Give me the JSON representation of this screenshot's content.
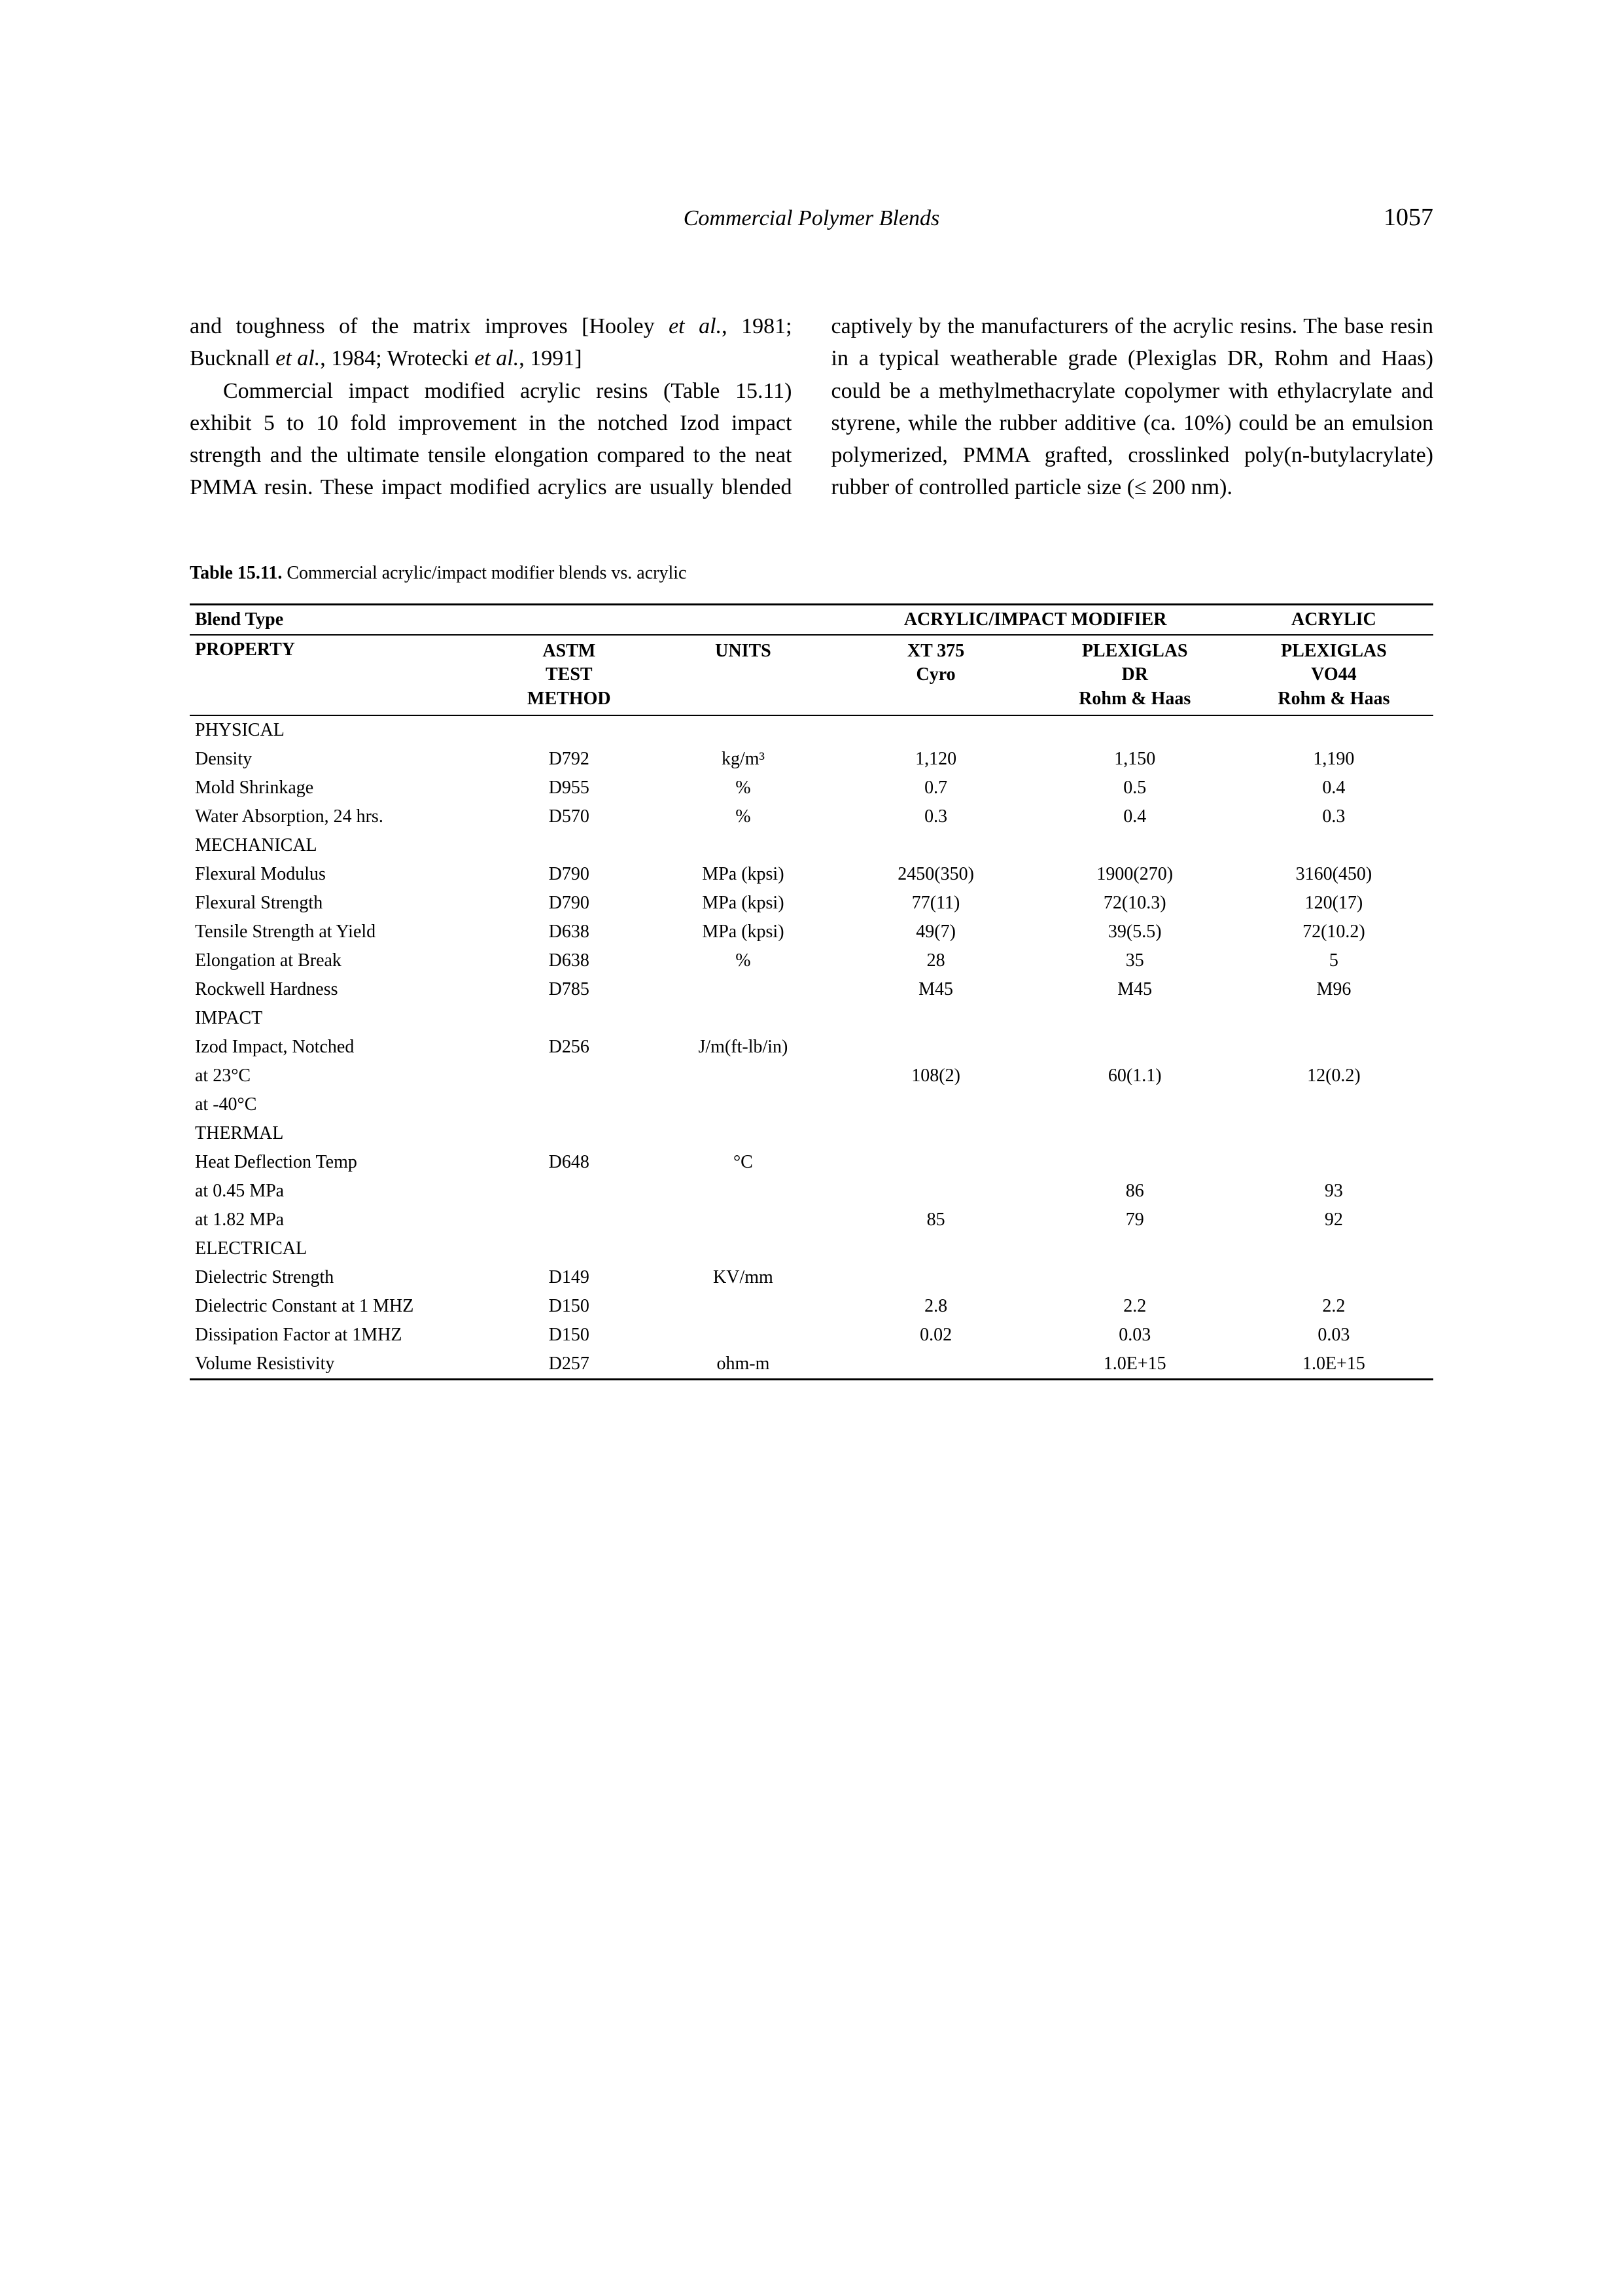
{
  "header": {
    "running_title": "Commercial Polymer Blends",
    "page_number": "1057"
  },
  "body": {
    "para1": "and toughness of the matrix improves [Hooley <i>et al.</i>, 1981; Bucknall <i>et al.</i>, 1984; Wrotecki <i>et al.</i>, 1991]",
    "para2": "Commercial impact modified acrylic resins (Table 15.11) exhibit 5 to 10 fold improvement in the notched Izod impact strength and the ultimate tensile elongation compared to the neat PMMA resin. These impact modified acrylics are usually blended captively by the manufacturers of the acrylic resins. The base resin in a typical weatherable grade (Plexiglas DR, Rohm and Haas) could be a methylmethacrylate copolymer with ethylacrylate and styrene, while the rubber additive (ca. 10%) could be an emulsion polymerized, PMMA grafted, crosslinked poly(n-butylacrylate) rubber of controlled particle size (≤ 200 nm)."
  },
  "table": {
    "caption_label": "Table 15.11.",
    "caption_text": "Commercial acrylic/impact modifier blends vs. acrylic",
    "header": {
      "blend_type": "Blend Type",
      "group_mod": "ACRYLIC/IMPACT MODIFIER",
      "group_acr": "ACRYLIC",
      "property": "PROPERTY",
      "astm": "ASTM\nTEST\nMETHOD",
      "units": "UNITS",
      "col1": "XT 375\nCyro",
      "col2": "PLEXIGLAS\nDR\nRohm & Haas",
      "col3": "PLEXIGLAS\nVO44\nRohm & Haas"
    },
    "sections": [
      {
        "name": "PHYSICAL",
        "rows": [
          {
            "prop": "Density",
            "astm": "D792",
            "units": "kg/m³",
            "v1": "1,120",
            "v2": "1,150",
            "v3": "1,190"
          },
          {
            "prop": "Mold Shrinkage",
            "astm": "D955",
            "units": "%",
            "v1": "0.7",
            "v2": "0.5",
            "v3": "0.4"
          },
          {
            "prop": "Water Absorption, 24 hrs.",
            "astm": "D570",
            "units": "%",
            "v1": "0.3",
            "v2": "0.4",
            "v3": "0.3"
          }
        ]
      },
      {
        "name": "MECHANICAL",
        "rows": [
          {
            "prop": "Flexural Modulus",
            "astm": "D790",
            "units": "MPa (kpsi)",
            "v1": "2450(350)",
            "v2": "1900(270)",
            "v3": "3160(450)"
          },
          {
            "prop": "Flexural Strength",
            "astm": "D790",
            "units": "MPa (kpsi)",
            "v1": "77(11)",
            "v2": "72(10.3)",
            "v3": "120(17)"
          },
          {
            "prop": "Tensile Strength at Yield",
            "astm": "D638",
            "units": "MPa (kpsi)",
            "v1": "49(7)",
            "v2": "39(5.5)",
            "v3": "72(10.2)"
          },
          {
            "prop": "Elongation at Break",
            "astm": "D638",
            "units": "%",
            "v1": "28",
            "v2": "35",
            "v3": "5"
          },
          {
            "prop": "Rockwell Hardness",
            "astm": "D785",
            "units": "",
            "v1": "M45",
            "v2": "M45",
            "v3": "M96"
          }
        ]
      },
      {
        "name": "IMPACT",
        "rows": [
          {
            "prop": "Izod Impact, Notched",
            "astm": "D256",
            "units": "J/m(ft-lb/in)",
            "v1": "",
            "v2": "",
            "v3": ""
          },
          {
            "prop": "at 23°C",
            "astm": "",
            "units": "",
            "v1": "108(2)",
            "v2": "60(1.1)",
            "v3": "12(0.2)"
          },
          {
            "prop": "at -40°C",
            "astm": "",
            "units": "",
            "v1": "",
            "v2": "",
            "v3": ""
          }
        ]
      },
      {
        "name": "THERMAL",
        "rows": [
          {
            "prop": "Heat Deflection Temp",
            "astm": "D648",
            "units": "°C",
            "v1": "",
            "v2": "",
            "v3": ""
          },
          {
            "prop": "at 0.45 MPa",
            "astm": "",
            "units": "",
            "v1": "",
            "v2": "86",
            "v3": "93"
          },
          {
            "prop": "at 1.82 MPa",
            "astm": "",
            "units": "",
            "v1": "85",
            "v2": "79",
            "v3": "92"
          }
        ]
      },
      {
        "name": "ELECTRICAL",
        "rows": [
          {
            "prop": "Dielectric Strength",
            "astm": "D149",
            "units": "KV/mm",
            "v1": "",
            "v2": "",
            "v3": ""
          },
          {
            "prop": "Dielectric Constant at 1 MHZ",
            "astm": "D150",
            "units": "",
            "v1": "2.8",
            "v2": "2.2",
            "v3": "2.2"
          },
          {
            "prop": "Dissipation Factor at 1MHZ",
            "astm": "D150",
            "units": "",
            "v1": "0.02",
            "v2": "0.03",
            "v3": "0.03"
          },
          {
            "prop": "Volume Resistivity",
            "astm": "D257",
            "units": "ohm-m",
            "v1": "",
            "v2": "1.0E+15",
            "v3": "1.0E+15"
          }
        ]
      }
    ]
  }
}
